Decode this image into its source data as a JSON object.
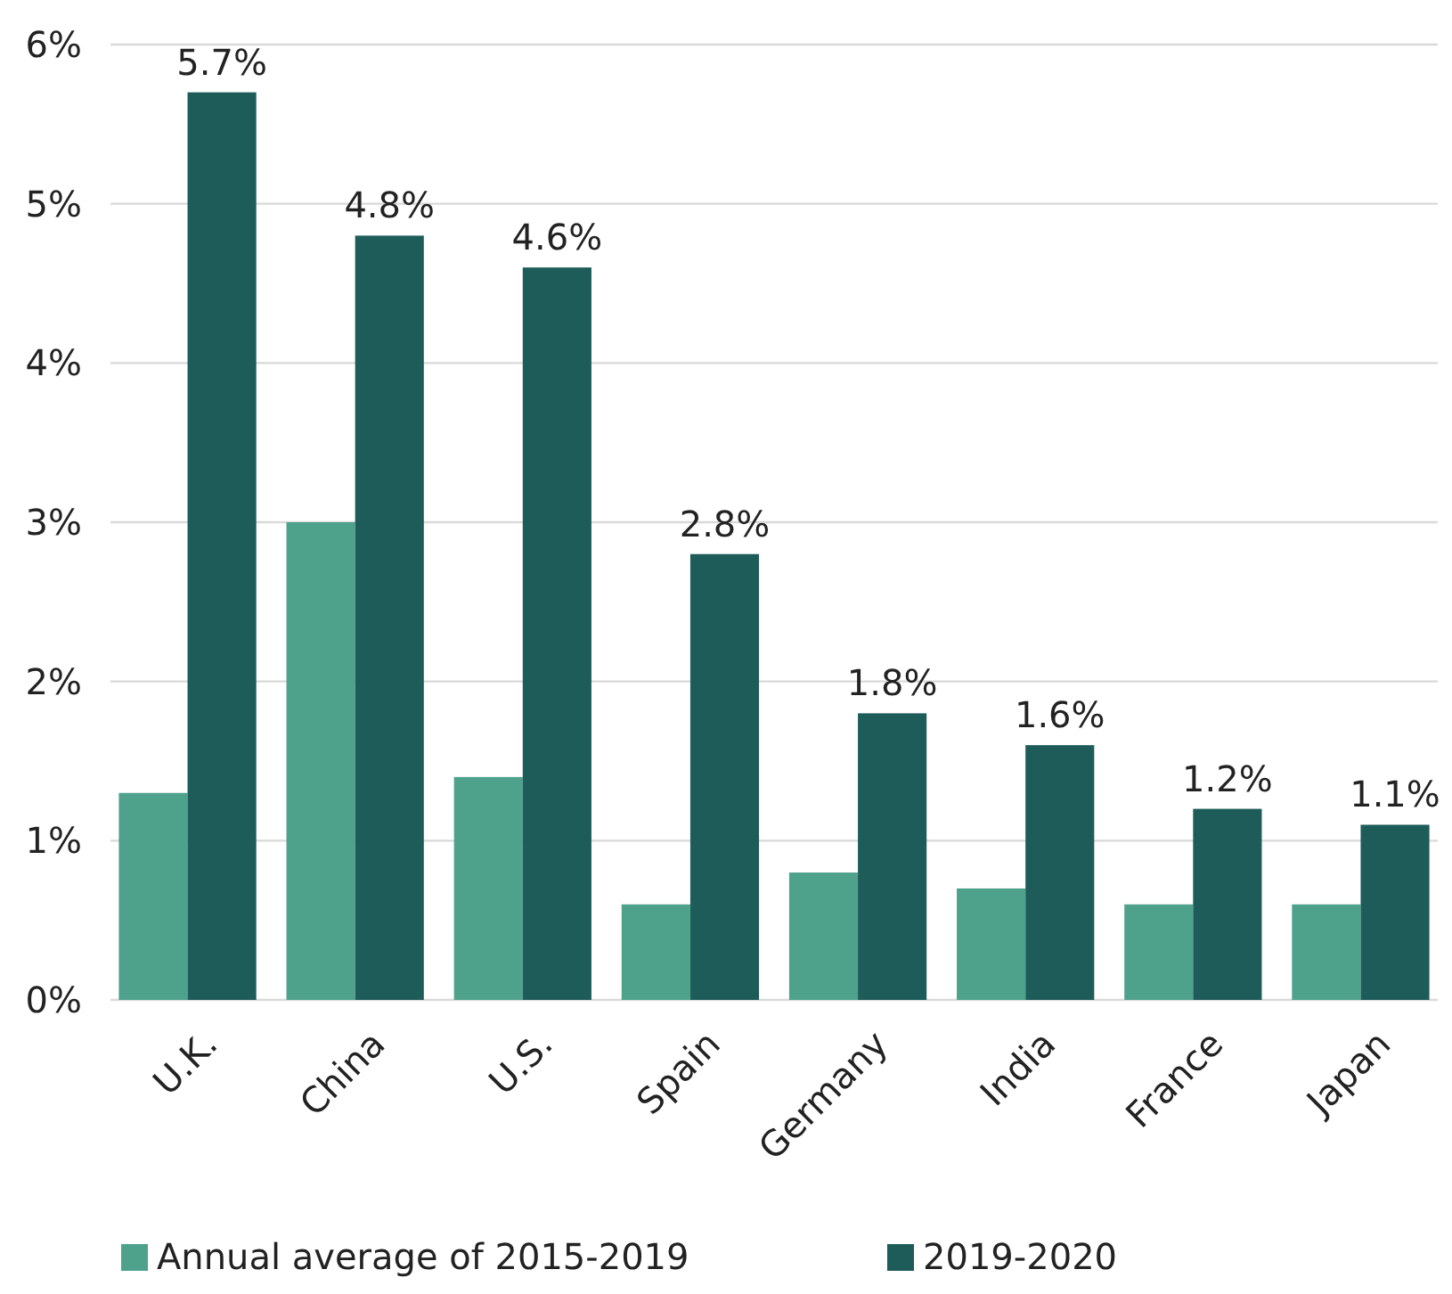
{
  "chart_data": {
    "type": "bar",
    "categories": [
      "U.K.",
      "China",
      "U.S.",
      "Spain",
      "Germany",
      "India",
      "France",
      "Japan"
    ],
    "series": [
      {
        "name": "Annual average of 2015-2019",
        "color": "#4ea28b",
        "values": [
          1.3,
          3.0,
          1.4,
          0.6,
          0.8,
          0.7,
          0.6,
          0.6
        ]
      },
      {
        "name": "2019-2020",
        "color": "#1e5c5a",
        "values": [
          5.7,
          4.8,
          4.6,
          2.8,
          1.8,
          1.6,
          1.2,
          1.1
        ],
        "value_labels": [
          "5.7%",
          "4.8%",
          "4.6%",
          "2.8%",
          "1.8%",
          "1.6%",
          "1.2%",
          "1.1%"
        ]
      }
    ],
    "ylim": [
      0,
      6
    ],
    "yticks": [
      {
        "value": 0,
        "label": "0%"
      },
      {
        "value": 1,
        "label": "1%"
      },
      {
        "value": 2,
        "label": "2%"
      },
      {
        "value": 3,
        "label": "3%"
      },
      {
        "value": 4,
        "label": "4%"
      },
      {
        "value": 5,
        "label": "5%"
      },
      {
        "value": 6,
        "label": "6%"
      }
    ],
    "grid": "y",
    "legend": "bottom"
  }
}
